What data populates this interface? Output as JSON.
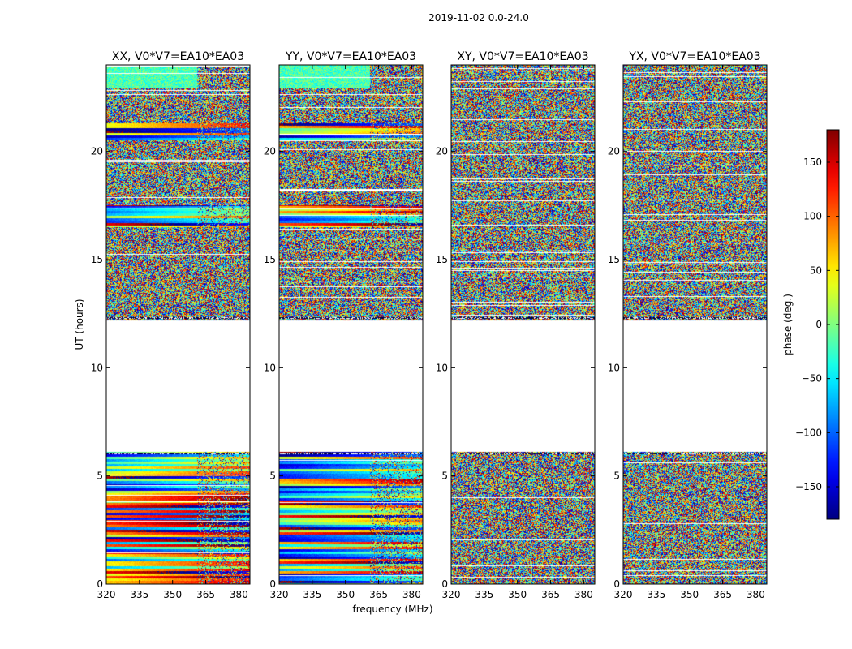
{
  "figure": {
    "suptitle": "2019-11-02 0.0-24.0",
    "xlabel": "frequency (MHz)",
    "ylabel": "UT (hours)",
    "colorbar_label": "phase (deg.)"
  },
  "chart_data": {
    "type": "heatmap",
    "title": "2019-11-02 0.0-24.0",
    "xlabel": "frequency (MHz)",
    "ylabel": "UT (hours)",
    "xlim": [
      320,
      385
    ],
    "ylim": [
      0,
      24
    ],
    "x_ticks": [
      "320",
      "335",
      "350",
      "365",
      "380"
    ],
    "x_tick_values": [
      320,
      335,
      350,
      365,
      380
    ],
    "y_ticks": [
      "0",
      "5",
      "10",
      "15",
      "20"
    ],
    "y_tick_values": [
      0,
      5,
      10,
      15,
      20
    ],
    "panels": [
      {
        "title": "XX, V0*V7=EA10*EA03",
        "pol": "XX",
        "structured": true
      },
      {
        "title": "YY, V0*V7=EA10*EA03",
        "pol": "YY",
        "structured": true
      },
      {
        "title": "XY, V0*V7=EA10*EA03",
        "pol": "XY",
        "structured": false
      },
      {
        "title": "YX, V0*V7=EA10*EA03",
        "pol": "YX",
        "structured": false
      }
    ],
    "data_gaps_hours": [
      [
        6.1,
        12.2
      ]
    ],
    "colorbar": {
      "label": "phase (deg.)",
      "range": [
        -180,
        180
      ],
      "ticks": [
        150,
        100,
        50,
        0,
        -50,
        -100,
        -150
      ],
      "tick_labels": [
        "150",
        "100",
        "50",
        "0",
        "−50",
        "−100",
        "−150"
      ],
      "colormap": "jet"
    }
  }
}
